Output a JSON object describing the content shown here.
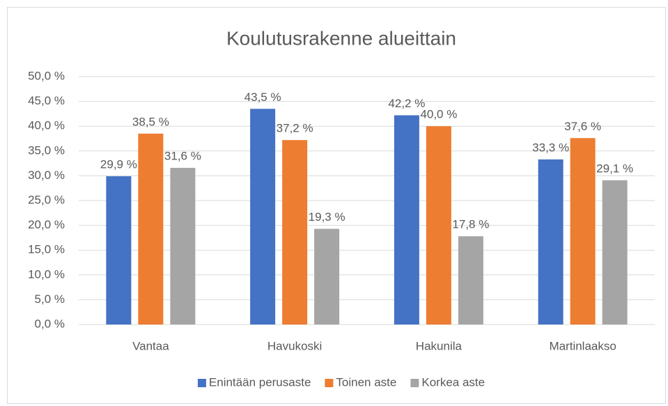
{
  "chart_data": {
    "type": "bar",
    "title": "Koulutusrakenne alueittain",
    "categories": [
      "Vantaa",
      "Havukoski",
      "Hakunila",
      "Martinlaakso"
    ],
    "series": [
      {
        "name": "Enintään perusaste",
        "color": "#4472c4",
        "values": [
          29.9,
          43.5,
          42.2,
          33.3
        ],
        "value_labels": [
          "29,9 %",
          "43,5 %",
          "42,2 %",
          "33,3 %"
        ]
      },
      {
        "name": "Toinen aste",
        "color": "#ed7d31",
        "values": [
          38.5,
          37.2,
          40.0,
          37.6
        ],
        "value_labels": [
          "38,5 %",
          "37,2 %",
          "40,0 %",
          "37,6 %"
        ]
      },
      {
        "name": "Korkea aste",
        "color": "#a5a5a5",
        "values": [
          31.6,
          19.3,
          17.8,
          29.1
        ],
        "value_labels": [
          "31,6 %",
          "19,3 %",
          "17,8 %",
          "29,1 %"
        ]
      }
    ],
    "ylim": [
      0,
      50
    ],
    "yticks": [
      {
        "value": 0,
        "label": "0,0 %"
      },
      {
        "value": 5,
        "label": "5,0 %"
      },
      {
        "value": 10,
        "label": "10,0 %"
      },
      {
        "value": 15,
        "label": "15,0 %"
      },
      {
        "value": 20,
        "label": "20,0 %"
      },
      {
        "value": 25,
        "label": "25,0 %"
      },
      {
        "value": 30,
        "label": "30,0 %"
      },
      {
        "value": 35,
        "label": "35,0 %"
      },
      {
        "value": 40,
        "label": "40,0 %"
      },
      {
        "value": 45,
        "label": "45,0 %"
      },
      {
        "value": 50,
        "label": "50,0 %"
      }
    ],
    "grid": true,
    "legend": "bottom"
  }
}
